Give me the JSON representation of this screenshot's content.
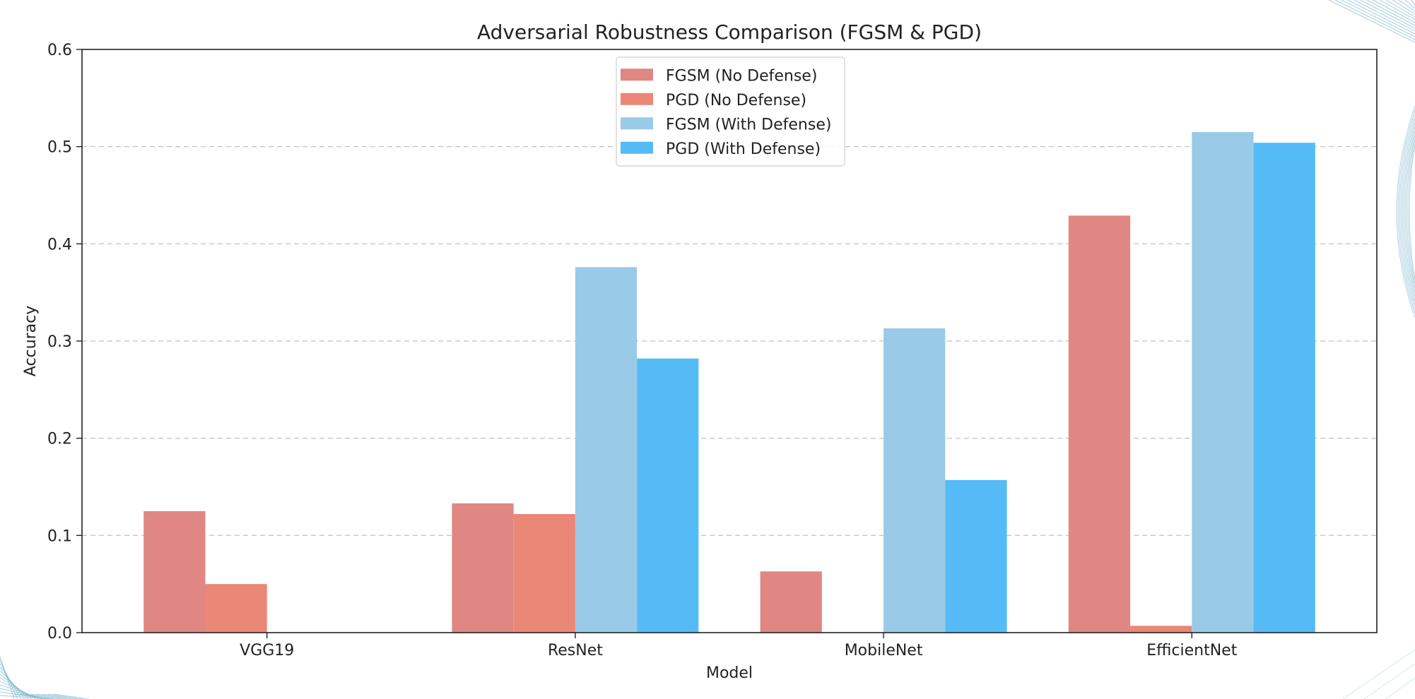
{
  "chart_data": {
    "type": "bar",
    "title": "Adversarial Robustness Comparison (FGSM & PGD)",
    "xlabel": "Model",
    "ylabel": "Accuracy",
    "ylim": [
      0,
      0.6
    ],
    "yticks": [
      "0.0",
      "0.1",
      "0.2",
      "0.3",
      "0.4",
      "0.5",
      "0.6"
    ],
    "grid": "y-dashed",
    "legend_position": "top-center",
    "categories": [
      "VGG19",
      "ResNet",
      "MobileNet",
      "EfficientNet"
    ],
    "series": [
      {
        "name": "FGSM (No Defense)",
        "color": "#e08783",
        "values": [
          0.125,
          0.133,
          0.063,
          0.429
        ]
      },
      {
        "name": "PGD (No Defense)",
        "color": "#ea8777",
        "values": [
          0.05,
          0.122,
          0.0,
          0.007
        ]
      },
      {
        "name": "FGSM (With Defense)",
        "color": "#99cbe8",
        "values": [
          0.0,
          0.376,
          0.313,
          0.515
        ]
      },
      {
        "name": "PGD (With Defense)",
        "color": "#55bbf7",
        "values": [
          0.0,
          0.282,
          0.157,
          0.504
        ]
      }
    ]
  },
  "colors": {
    "axis": "#222222",
    "grid": "#c8c8c8",
    "decoration": "#7fb6cf"
  }
}
